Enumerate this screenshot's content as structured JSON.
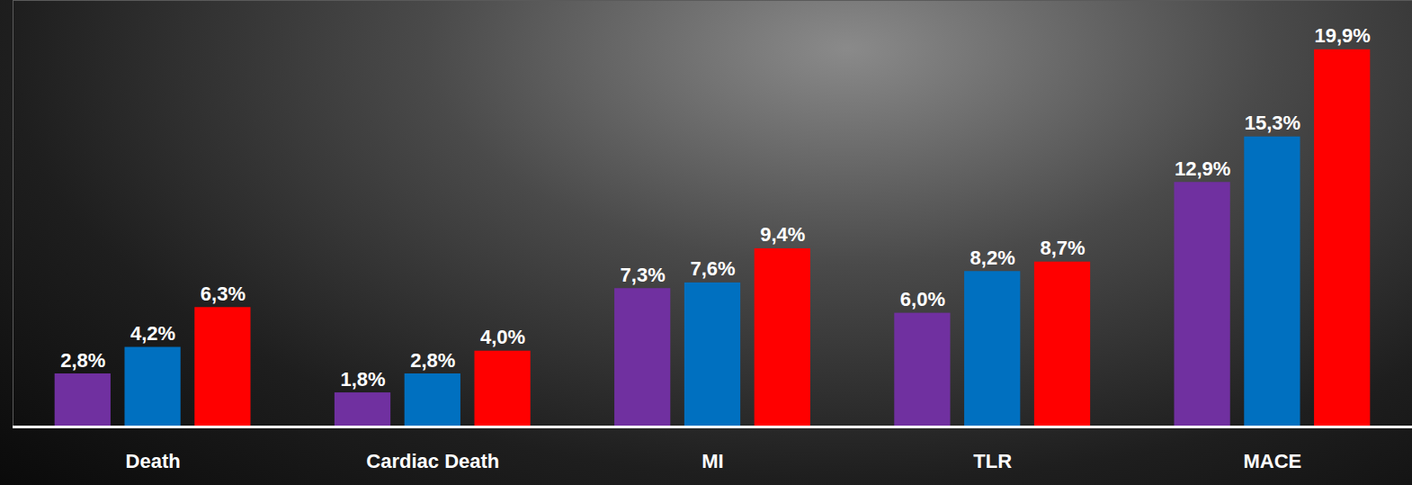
{
  "chart_data": {
    "type": "bar",
    "categories": [
      "Death",
      "Cardiac Death",
      "MI",
      "TLR",
      "MACE"
    ],
    "series": [
      {
        "color": "#7030a0",
        "values": [
          2.8,
          1.8,
          7.3,
          6.0,
          12.9
        ],
        "value_labels": [
          "2,8%",
          "1,8%",
          "7,3%",
          "6,0%",
          "12,9%"
        ]
      },
      {
        "color": "#0070c0",
        "values": [
          4.2,
          2.8,
          7.6,
          8.2,
          15.3
        ],
        "value_labels": [
          "4,2%",
          "2,8%",
          "7,6%",
          "8,2%",
          "15,3%"
        ]
      },
      {
        "color": "#ff0000",
        "values": [
          6.3,
          4.0,
          9.4,
          8.7,
          19.9
        ],
        "value_labels": [
          "6,3%",
          "4,0%",
          "9,4%",
          "8,7%",
          "19,9%"
        ]
      }
    ],
    "ylim": [
      0,
      22.5
    ],
    "yticks": [],
    "grid": false,
    "data_labels": true,
    "tick_labels": "x"
  }
}
